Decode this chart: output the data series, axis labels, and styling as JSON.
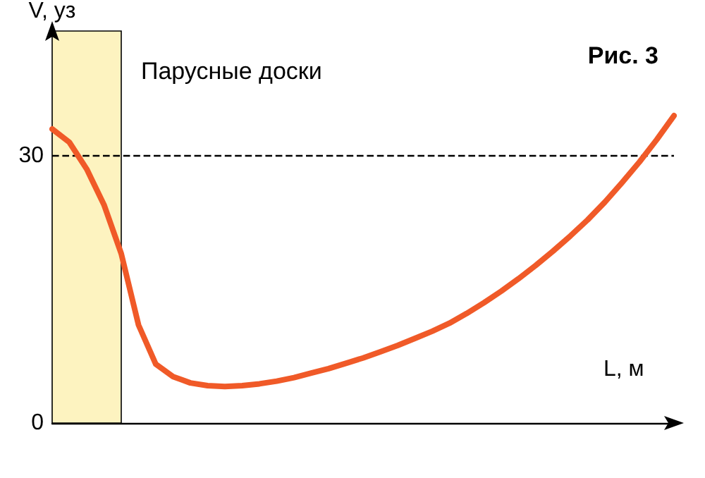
{
  "chart_data": {
    "type": "line",
    "title": "Рис. 3",
    "xlabel": "L, м",
    "ylabel": "V, уз",
    "categories": [
      null,
      null,
      null,
      null,
      null,
      null,
      null,
      null,
      null,
      null,
      null,
      null,
      null,
      null,
      null,
      null,
      null,
      null,
      null,
      null,
      null,
      null,
      null,
      null,
      null,
      null,
      null,
      null,
      null,
      null,
      null,
      null,
      null,
      null,
      null,
      null,
      null
    ],
    "series": [
      {
        "color": "#f05a28",
        "values": [
          33,
          31.5,
          28.5,
          24.5,
          19,
          11,
          6.6,
          5.2,
          4.5,
          4.2,
          4.1,
          4.2,
          4.4,
          4.7,
          5.1,
          5.6,
          6.1,
          6.7,
          7.3,
          8,
          8.7,
          9.5,
          10.3,
          11.2,
          12.3,
          13.5,
          14.8,
          16.2,
          17.7,
          19.3,
          21,
          22.8,
          24.8,
          27,
          29.3,
          31.8,
          34.5
        ]
      }
    ],
    "ylim": [
      0,
      44
    ],
    "yticks": [
      0,
      30
    ],
    "tick_labels": "y",
    "marker": "none",
    "line_style": "solid",
    "ref_lines": [
      {
        "axis": "y",
        "value": 30,
        "color": "#000000",
        "line_style": "dashed"
      }
    ],
    "annotations": [
      "Парусные доски"
    ]
  }
}
